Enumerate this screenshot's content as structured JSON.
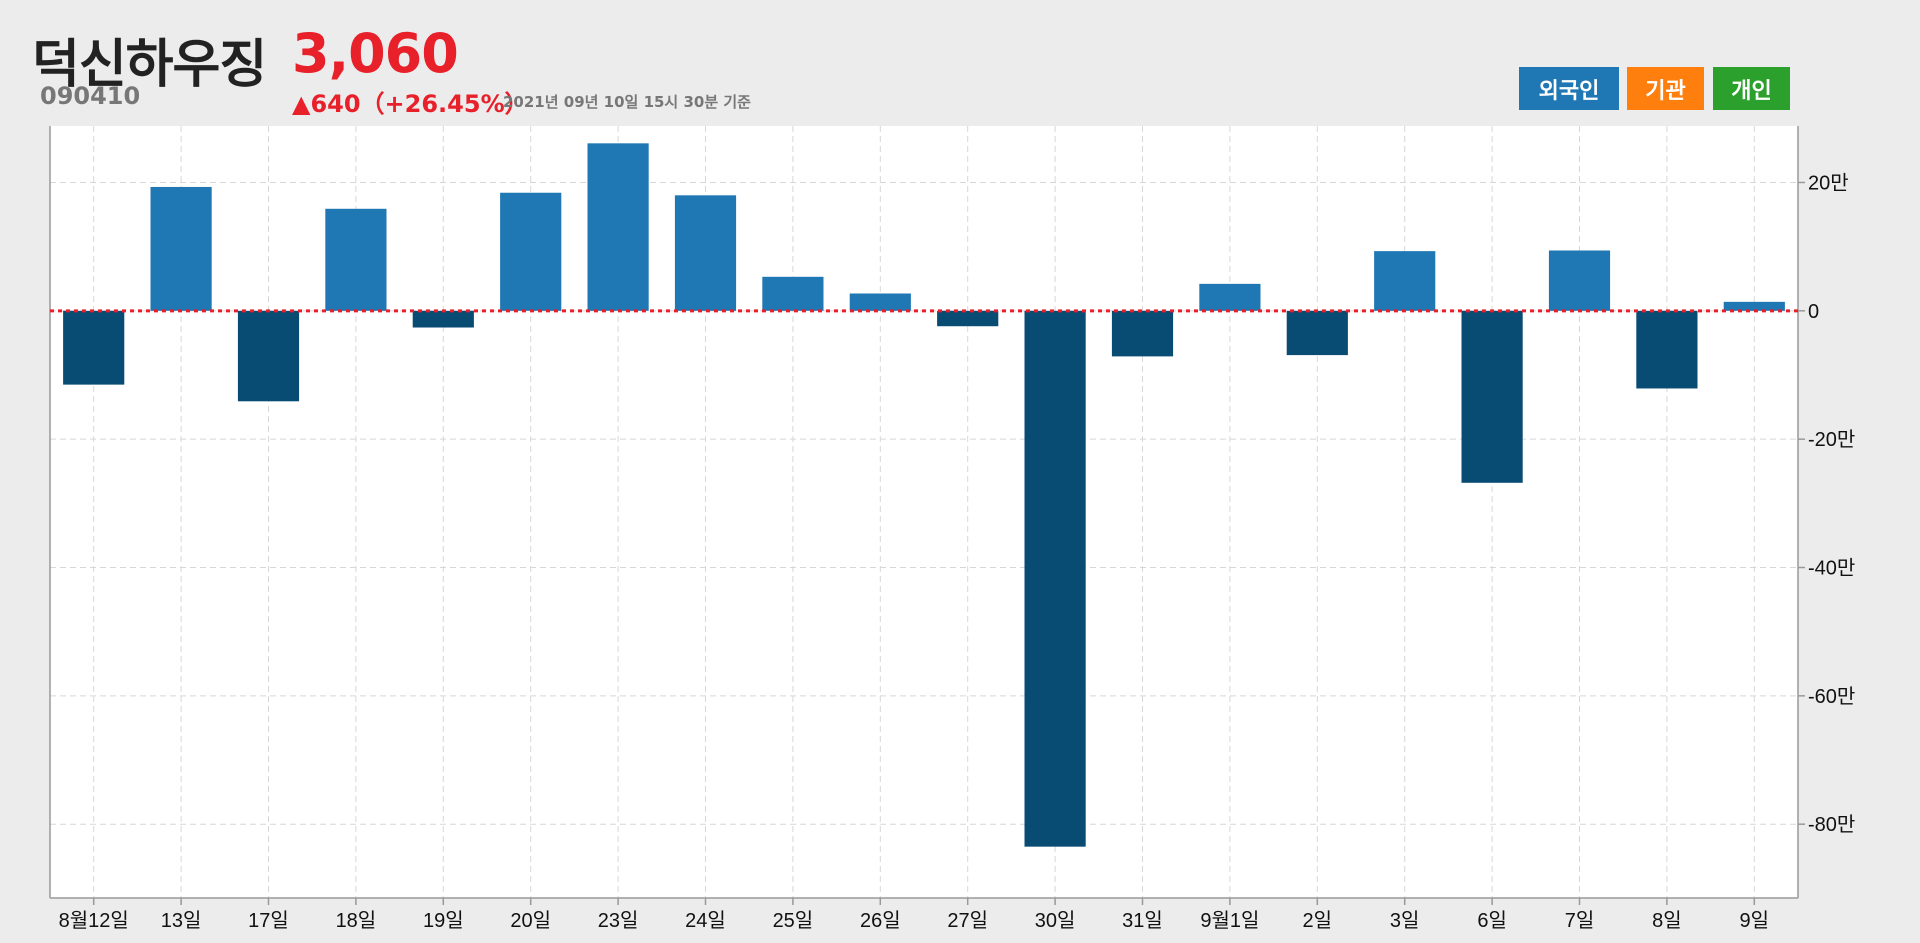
{
  "header": {
    "stock_name": "덕신하우징",
    "stock_code": "090410",
    "price": "3,060",
    "change": "▲640（+26.45%）",
    "as_of": "2021년 09년 10일 15시 30분 기준"
  },
  "legend": {
    "items": [
      {
        "label": "외국인",
        "color": "#1f77b4"
      },
      {
        "label": "기관",
        "color": "#ff7f0e"
      },
      {
        "label": "개인",
        "color": "#2ca02c"
      }
    ]
  },
  "colors": {
    "positive_bar": "#1f77b4",
    "negative_bar": "#084b73",
    "zero_line": "#e8202a",
    "grid": "#d7d7d7"
  },
  "chart_data": {
    "type": "bar",
    "title": "",
    "xlabel": "",
    "ylabel": "",
    "categories": [
      "8월12일",
      "13일",
      "17일",
      "18일",
      "19일",
      "20일",
      "23일",
      "24일",
      "25일",
      "26일",
      "27일",
      "30일",
      "31일",
      "9월1일",
      "2일",
      "3일",
      "6일",
      "7일",
      "8일",
      "9일"
    ],
    "series": [
      {
        "name": "외국인",
        "values": [
          -115000,
          193000,
          -141000,
          159000,
          -26000,
          184000,
          261000,
          180000,
          53000,
          27000,
          -24000,
          -835000,
          -71000,
          42000,
          -69000,
          93000,
          -268000,
          94000,
          -121000,
          14000
        ]
      }
    ],
    "ylim": [
      -915000,
      288000
    ],
    "y_ticks": [
      20,
      0,
      -20,
      -40,
      -60,
      -80
    ],
    "y_tick_labels": [
      "20만",
      "0",
      "-20만",
      "-40만",
      "-60만",
      "-80만"
    ],
    "y_tick_unit": 10000,
    "y_axis_side": "right",
    "grid": true,
    "zero_line": "dotted"
  }
}
